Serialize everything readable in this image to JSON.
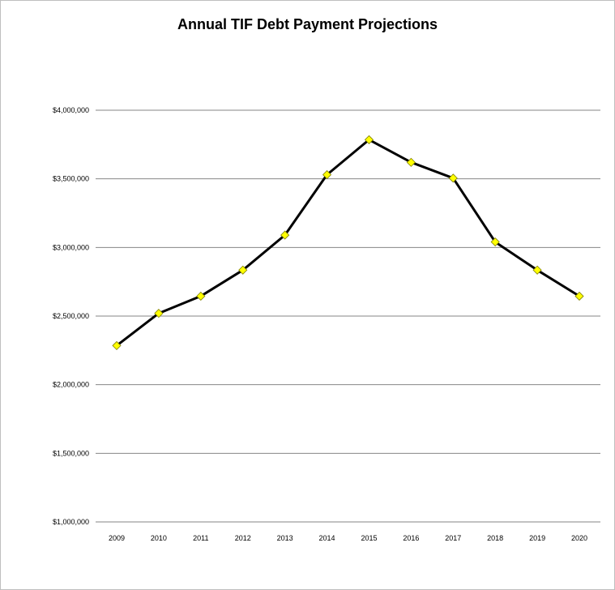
{
  "chart_data": {
    "type": "line",
    "title": "Annual TIF Debt Payment Projections",
    "xlabel": "",
    "ylabel": "",
    "categories": [
      "2009",
      "2010",
      "2011",
      "2012",
      "2013",
      "2014",
      "2015",
      "2016",
      "2017",
      "2018",
      "2019",
      "2020"
    ],
    "series": [
      {
        "values": [
          2285000,
          2520000,
          2645000,
          2835000,
          3090000,
          3530000,
          3785000,
          3620000,
          3505000,
          3040000,
          2835000,
          2645000
        ]
      }
    ],
    "ylim": [
      1000000,
      4000000
    ],
    "yticks": [
      1000000,
      1500000,
      2000000,
      2500000,
      3000000,
      3500000,
      4000000
    ],
    "ytick_labels": [
      "$1,000,000",
      "$1,500,000",
      "$2,000,000",
      "$2,500,000",
      "$3,000,000",
      "$3,500,000",
      "$4,000,000"
    ],
    "grid": true,
    "legend": "none",
    "colors": {
      "line": "#000000",
      "marker_fill": "#ffff00",
      "marker_edge": "#7f7f00",
      "grid": "#868686"
    },
    "marker": "diamond"
  }
}
